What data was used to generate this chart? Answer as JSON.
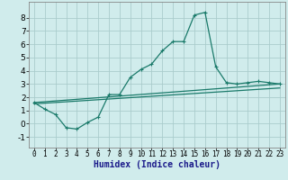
{
  "xlabel": "Humidex (Indice chaleur)",
  "ylabel": "",
  "background_color": "#d0ecec",
  "grid_color": "#aacccc",
  "line_color": "#1a7a6a",
  "xlim": [
    -0.5,
    23.5
  ],
  "ylim": [
    -1.8,
    9.2
  ],
  "yticks": [
    -1,
    0,
    1,
    2,
    3,
    4,
    5,
    6,
    7,
    8
  ],
  "xticks": [
    0,
    1,
    2,
    3,
    4,
    5,
    6,
    7,
    8,
    9,
    10,
    11,
    12,
    13,
    14,
    15,
    16,
    17,
    18,
    19,
    20,
    21,
    22,
    23
  ],
  "line1_x": [
    0,
    1,
    2,
    3,
    4,
    5,
    6,
    7,
    8,
    9,
    10,
    11,
    12,
    13,
    14,
    15,
    16,
    17,
    18,
    19,
    20,
    21,
    22,
    23
  ],
  "line1_y": [
    1.6,
    1.1,
    0.7,
    -0.3,
    -0.4,
    0.1,
    0.5,
    2.2,
    2.2,
    3.5,
    4.1,
    4.5,
    5.5,
    6.2,
    6.2,
    8.2,
    8.4,
    4.3,
    3.1,
    3.0,
    3.1,
    3.2,
    3.1,
    3.0
  ],
  "line2_x": [
    0,
    23
  ],
  "line2_y": [
    1.6,
    3.0
  ],
  "line3_x": [
    0,
    23
  ],
  "line3_y": [
    1.5,
    2.7
  ],
  "xlabel_color": "#1a1a8a",
  "xlabel_fontsize": 7.0,
  "tick_fontsize": 5.5,
  "ytick_fontsize": 6.5
}
